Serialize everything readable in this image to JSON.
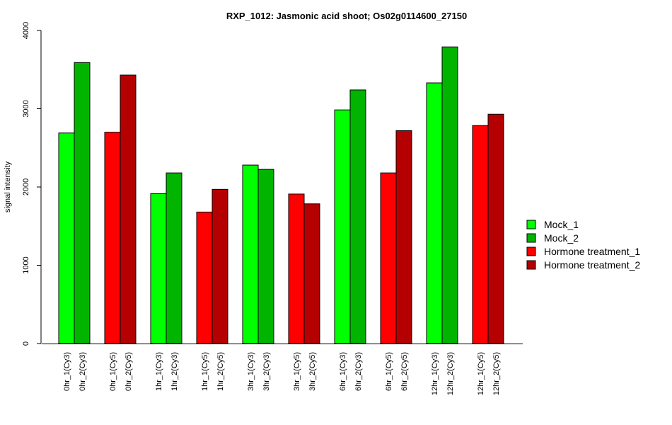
{
  "chart_data": {
    "type": "bar",
    "title": "RXP_1012: Jasmonic acid shoot; Os02g0114600_27150",
    "xlabel": "",
    "ylabel": "signal intensity",
    "ylim": [
      0,
      4000
    ],
    "yticks": [
      0,
      1000,
      2000,
      3000,
      4000
    ],
    "categories": [
      "0hr_1(Cy3)",
      "0hr_2(Cy3)",
      "0hr_1(Cy5)",
      "0hr_2(Cy5)",
      "1hr_1(Cy3)",
      "1hr_2(Cy3)",
      "1hr_1(Cy5)",
      "1hr_2(Cy5)",
      "3hr_1(Cy3)",
      "3hr_2(Cy3)",
      "3hr_1(Cy5)",
      "3hr_2(Cy5)",
      "6hr_1(Cy3)",
      "6hr_2(Cy3)",
      "6hr_1(Cy5)",
      "6hr_2(Cy5)",
      "12hr_1(Cy3)",
      "12hr_2(Cy3)",
      "12hr_1(Cy5)",
      "12hr_2(Cy5)"
    ],
    "values": [
      2690,
      3590,
      2700,
      3430,
      1915,
      2180,
      1680,
      1970,
      2280,
      2225,
      1910,
      1785,
      2985,
      3240,
      2180,
      2720,
      3330,
      3790,
      2785,
      2930
    ],
    "bar_series": [
      0,
      1,
      2,
      3,
      0,
      1,
      2,
      3,
      0,
      1,
      2,
      3,
      0,
      1,
      2,
      3,
      0,
      1,
      2,
      3
    ],
    "series": [
      {
        "name": "Mock_1",
        "color": "#00ff00"
      },
      {
        "name": "Mock_2",
        "color": "#00b400"
      },
      {
        "name": "Hormone treatment_1",
        "color": "#ff0000"
      },
      {
        "name": "Hormone treatment_2",
        "color": "#b40000"
      }
    ],
    "grid": false,
    "legend_position": "right"
  }
}
